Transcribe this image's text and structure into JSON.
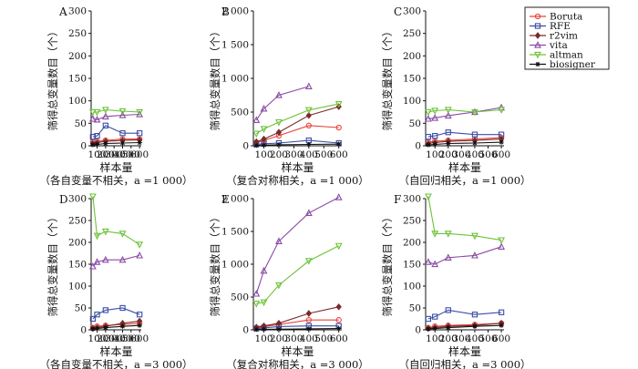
{
  "legend": {
    "entries": [
      {
        "name": "Boruta",
        "color": "#e8433a",
        "marker": "circle"
      },
      {
        "name": "RFE",
        "color": "#3b4ea6",
        "marker": "square"
      },
      {
        "name": "r2vim",
        "color": "#7a2a2a",
        "marker": "diamond"
      },
      {
        "name": "vita",
        "color": "#8a4aa6",
        "marker": "triangle-up"
      },
      {
        "name": "altman",
        "color": "#6cc237",
        "marker": "triangle-down"
      },
      {
        "name": "biosigner",
        "color": "#111111",
        "marker": "star"
      }
    ]
  },
  "chart_data": [
    {
      "type": "line",
      "letter": "A",
      "ylabel": "筛得总变量数目（个）",
      "xlabel": "样本量",
      "caption": "（各自变量不相关，a =1 000）",
      "x": [
        50,
        100,
        200,
        400,
        600
      ],
      "xticks": [
        100,
        200,
        300,
        400,
        500,
        600
      ],
      "ylim": [
        0,
        300
      ],
      "yticks": [
        0,
        50,
        100,
        150,
        200,
        250,
        300
      ],
      "series": [
        {
          "name": "Boruta",
          "values": [
            8,
            10,
            12,
            15,
            15
          ]
        },
        {
          "name": "RFE",
          "values": [
            20,
            22,
            45,
            28,
            28
          ]
        },
        {
          "name": "r2vim",
          "values": [
            5,
            7,
            10,
            12,
            13
          ]
        },
        {
          "name": "vita",
          "values": [
            60,
            58,
            65,
            68,
            70
          ]
        },
        {
          "name": "altman",
          "values": [
            75,
            75,
            80,
            77,
            75
          ]
        },
        {
          "name": "biosigner",
          "values": [
            2,
            3,
            5,
            6,
            7
          ]
        }
      ]
    },
    {
      "type": "line",
      "letter": "B",
      "ylabel": "筛得总变量数目（个）",
      "xlabel": "样本量",
      "caption": "（复合对称相关，a =1 000）",
      "x": [
        50,
        100,
        200,
        400,
        600
      ],
      "xticks": [
        100,
        200,
        300,
        400,
        500,
        600
      ],
      "ylim": [
        0,
        2000
      ],
      "yticks": [
        0,
        500,
        1000,
        1500,
        2000
      ],
      "series": [
        {
          "name": "Boruta",
          "values": [
            50,
            80,
            150,
            300,
            270
          ]
        },
        {
          "name": "RFE",
          "values": [
            20,
            30,
            40,
            80,
            40
          ]
        },
        {
          "name": "r2vim",
          "values": [
            60,
            100,
            200,
            450,
            580
          ]
        },
        {
          "name": "vita",
          "values": [
            380,
            550,
            750,
            880,
            null
          ]
        },
        {
          "name": "altman",
          "values": [
            180,
            250,
            350,
            530,
            620
          ]
        },
        {
          "name": "biosigner",
          "values": [
            5,
            10,
            15,
            20,
            25
          ]
        }
      ]
    },
    {
      "type": "line",
      "letter": "C",
      "ylabel": "筛得总变量数目（个）",
      "xlabel": "样本量",
      "caption": "（自回归相关，a =1 000）",
      "x": [
        50,
        100,
        200,
        400,
        600
      ],
      "xticks": [
        100,
        200,
        300,
        400,
        500,
        600
      ],
      "ylim": [
        0,
        300
      ],
      "yticks": [
        0,
        50,
        100,
        150,
        200,
        250,
        300
      ],
      "series": [
        {
          "name": "Boruta",
          "values": [
            8,
            10,
            12,
            15,
            18
          ]
        },
        {
          "name": "RFE",
          "values": [
            20,
            22,
            30,
            25,
            25
          ]
        },
        {
          "name": "r2vim",
          "values": [
            5,
            7,
            10,
            12,
            15
          ]
        },
        {
          "name": "vita",
          "values": [
            60,
            62,
            67,
            75,
            85
          ]
        },
        {
          "name": "altman",
          "values": [
            75,
            78,
            80,
            75,
            80
          ]
        },
        {
          "name": "biosigner",
          "values": [
            2,
            3,
            5,
            6,
            8
          ]
        }
      ]
    },
    {
      "type": "line",
      "letter": "D",
      "ylabel": "筛得总变量数目（个）",
      "xlabel": "样本量",
      "caption": "（各自变量不相关，a =3 000）",
      "x": [
        50,
        100,
        200,
        400,
        600
      ],
      "xticks": [
        100,
        200,
        300,
        400,
        500,
        600
      ],
      "ylim": [
        0,
        300
      ],
      "yticks": [
        0,
        50,
        100,
        150,
        200,
        250,
        300
      ],
      "series": [
        {
          "name": "Boruta",
          "values": [
            5,
            8,
            10,
            12,
            15
          ]
        },
        {
          "name": "RFE",
          "values": [
            25,
            35,
            45,
            50,
            35
          ]
        },
        {
          "name": "r2vim",
          "values": [
            3,
            5,
            8,
            15,
            20
          ]
        },
        {
          "name": "vita",
          "values": [
            145,
            155,
            160,
            160,
            170
          ]
        },
        {
          "name": "altman",
          "values": [
            305,
            215,
            225,
            220,
            195
          ]
        },
        {
          "name": "biosigner",
          "values": [
            2,
            3,
            5,
            8,
            10
          ]
        }
      ]
    },
    {
      "type": "line",
      "letter": "E",
      "ylabel": "筛得总变量数目（个）",
      "xlabel": "样本量",
      "caption": "（复合对称相关，a =3 000）",
      "x": [
        50,
        100,
        200,
        400,
        600
      ],
      "xticks": [
        100,
        200,
        300,
        400,
        500,
        600
      ],
      "ylim": [
        0,
        2000
      ],
      "yticks": [
        0,
        500,
        1000,
        1500,
        2000
      ],
      "series": [
        {
          "name": "Boruta",
          "values": [
            30,
            50,
            80,
            150,
            150
          ]
        },
        {
          "name": "RFE",
          "values": [
            20,
            30,
            50,
            60,
            60
          ]
        },
        {
          "name": "r2vim",
          "values": [
            40,
            60,
            100,
            250,
            350
          ]
        },
        {
          "name": "vita",
          "values": [
            550,
            900,
            1350,
            1780,
            2020
          ]
        },
        {
          "name": "altman",
          "values": [
            400,
            420,
            680,
            1050,
            1280
          ]
        },
        {
          "name": "biosigner",
          "values": [
            5,
            8,
            10,
            15,
            20
          ]
        }
      ]
    },
    {
      "type": "line",
      "letter": "F",
      "ylabel": "筛得总变量数目（个）",
      "xlabel": "样本量",
      "caption": "（自回归相关，a =3 000）",
      "x": [
        50,
        100,
        200,
        400,
        600
      ],
      "xticks": [
        100,
        200,
        300,
        400,
        500,
        600
      ],
      "ylim": [
        0,
        300
      ],
      "yticks": [
        0,
        50,
        100,
        150,
        200,
        250,
        300
      ],
      "series": [
        {
          "name": "Boruta",
          "values": [
            5,
            8,
            10,
            12,
            15
          ]
        },
        {
          "name": "RFE",
          "values": [
            25,
            30,
            45,
            35,
            40
          ]
        },
        {
          "name": "r2vim",
          "values": [
            3,
            5,
            8,
            10,
            15
          ]
        },
        {
          "name": "vita",
          "values": [
            155,
            150,
            165,
            170,
            190
          ]
        },
        {
          "name": "altman",
          "values": [
            305,
            220,
            220,
            215,
            205
          ]
        },
        {
          "name": "biosigner",
          "values": [
            2,
            3,
            5,
            8,
            10
          ]
        }
      ]
    }
  ]
}
